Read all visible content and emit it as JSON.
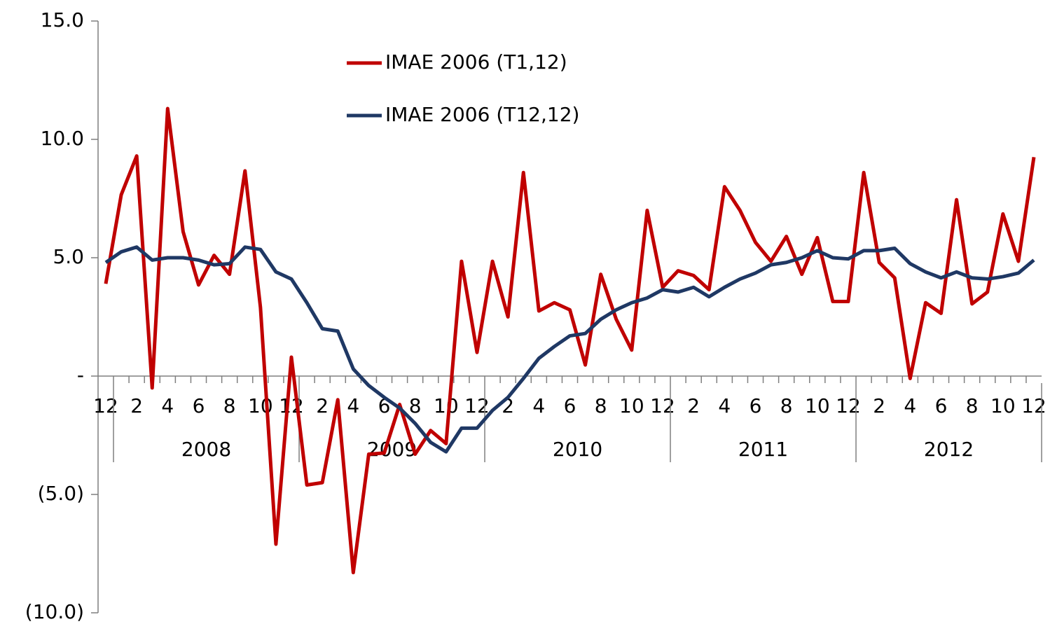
{
  "chart_data": {
    "type": "line",
    "categories": [
      "12",
      null,
      "2",
      null,
      "4",
      null,
      "6",
      null,
      "8",
      null,
      "10",
      null,
      "12",
      null,
      "2",
      null,
      "4",
      null,
      "6",
      null,
      "8",
      null,
      "10",
      null,
      "12",
      null,
      "2",
      null,
      "4",
      null,
      "6",
      null,
      "8",
      null,
      "10",
      null,
      "12",
      null,
      "2",
      null,
      "4",
      null,
      "6",
      null,
      "8",
      null,
      "10",
      null,
      "12",
      null,
      "2",
      null,
      "4",
      null,
      "6",
      null,
      "8",
      null,
      "10",
      null,
      "12"
    ],
    "groups": [
      "2008",
      "2009",
      "2010",
      "2011",
      "2012"
    ],
    "series": [
      {
        "name": "IMAE 2006 (T1,12)",
        "color": "#c00000",
        "values": [
          3.9,
          7.66,
          9.3,
          -0.5,
          11.3,
          6.1,
          3.85,
          5.1,
          4.3,
          8.67,
          2.9,
          -7.1,
          0.8,
          -4.6,
          -4.5,
          -1.0,
          -8.3,
          -3.3,
          -3.25,
          -1.2,
          -3.3,
          -2.3,
          -2.85,
          4.85,
          1.0,
          4.85,
          2.5,
          8.6,
          2.75,
          3.1,
          2.8,
          0.47,
          4.3,
          2.4,
          1.1,
          7.0,
          3.75,
          4.45,
          4.25,
          3.65,
          8.0,
          7.0,
          5.65,
          4.85,
          5.9,
          4.3,
          5.85,
          3.15,
          3.15,
          8.6,
          4.8,
          4.15,
          -0.1,
          3.1,
          2.65,
          7.45,
          3.05,
          3.55,
          6.85,
          4.85,
          9.25
        ]
      },
      {
        "name": "IMAE 2006 (T12,12)",
        "color": "#1f3864",
        "values": [
          4.8,
          5.25,
          5.45,
          4.9,
          5.0,
          5.0,
          4.9,
          4.7,
          4.75,
          5.45,
          5.35,
          4.4,
          4.1,
          3.1,
          2.0,
          1.9,
          0.3,
          -0.4,
          -0.9,
          -1.35,
          -2.0,
          -2.8,
          -3.2,
          -2.2,
          -2.2,
          -1.45,
          -0.9,
          -0.1,
          0.75,
          1.25,
          1.7,
          1.8,
          2.4,
          2.8,
          3.1,
          3.3,
          3.65,
          3.55,
          3.75,
          3.35,
          3.75,
          4.1,
          4.35,
          4.7,
          4.8,
          5.0,
          5.3,
          5.0,
          4.95,
          5.3,
          5.3,
          5.4,
          4.75,
          4.4,
          4.15,
          4.4,
          4.15,
          4.1,
          4.2,
          4.35,
          4.9
        ]
      }
    ],
    "ylim": [
      -10,
      15
    ],
    "yticks": [
      {
        "value": -10,
        "label": "(10.0)"
      },
      {
        "value": -5,
        "label": "(5.0)"
      },
      {
        "value": 0,
        "label": "-"
      },
      {
        "value": 5,
        "label": "5.0"
      },
      {
        "value": 10,
        "label": "10.0"
      },
      {
        "value": 15,
        "label": "15.0"
      }
    ],
    "grid": false,
    "legend": "top"
  }
}
